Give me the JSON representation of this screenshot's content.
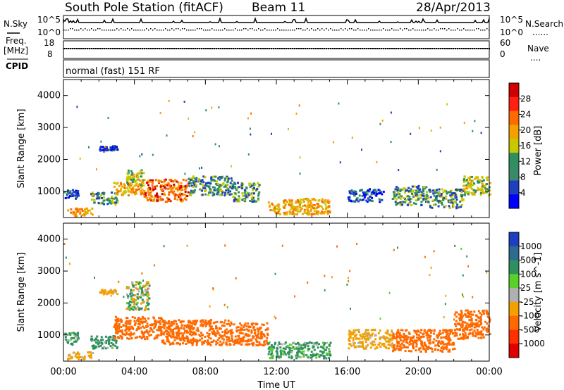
{
  "header": {
    "station": "South Pole Station (fitACF)",
    "beam": "Beam 11",
    "date": "28/Apr/2013"
  },
  "side_labels": {
    "nsky": "N.Sky",
    "freq_line1": "Freq.",
    "freq_line2": "[MHz]",
    "cpid": "CPID",
    "nsearch": "N.Search",
    "nave": "Nave",
    "dots": "......",
    "dots_short": "...."
  },
  "cpid_text": "normal (fast) 151 RF",
  "axes": {
    "nsky_ticks": [
      "10^5",
      "10^0"
    ],
    "nsearch_ticks": [
      "10^5",
      "10^0"
    ],
    "freq_ticks": [
      "18",
      "8"
    ],
    "nave_ticks": [
      "60",
      "0"
    ],
    "range_label": "Slant Range [km]",
    "range_ticks": [
      1000,
      2000,
      3000,
      4000
    ],
    "range_lim": [
      180,
      4500
    ],
    "time_label": "Time UT",
    "time_ticks": [
      "00:00",
      "04:00",
      "08:00",
      "12:00",
      "16:00",
      "20:00",
      "00:00"
    ],
    "time_lim_hours": [
      0,
      24
    ]
  },
  "colorbars": {
    "power": {
      "label": "Power [dB]",
      "ticks": [
        "28",
        "24",
        "20",
        "16",
        "12",
        "8",
        "4"
      ],
      "colors": [
        "#d00000",
        "#ff2010",
        "#ff6a00",
        "#f4a000",
        "#c8c800",
        "#2f8f5f",
        "#3a8a6a",
        "#1e3fbe",
        "#0000ff"
      ]
    },
    "velocity": {
      "label": "Velocity [m s^-1]",
      "ticks": [
        "1000",
        "500",
        "100",
        "25",
        "-25",
        "-100",
        "-500",
        "-1000"
      ],
      "colors": [
        "#1e3fbe",
        "#2f6b8f",
        "#2f8f5f",
        "#5ad02a",
        "#b0b0b0",
        "#f4a000",
        "#ff6a00",
        "#ff3000",
        "#e00000"
      ]
    }
  },
  "chart_data": [
    {
      "type": "heatmap",
      "title": "South Pole Station (fitACF) Beam 11 28/Apr/2013",
      "xlabel": "Time UT",
      "ylabel": "Slant Range [km]",
      "xlim": [
        0,
        24
      ],
      "ylim": [
        180,
        4500
      ],
      "quantity": "Power [dB]",
      "regions": [
        {
          "t": [
            0.0,
            0.8
          ],
          "r": [
            800,
            1100
          ],
          "value": 8
        },
        {
          "t": [
            0.2,
            1.6
          ],
          "r": [
            250,
            500
          ],
          "value": 20
        },
        {
          "t": [
            1.5,
            3.0
          ],
          "r": [
            600,
            1000
          ],
          "value": 12
        },
        {
          "t": [
            2.0,
            3.0
          ],
          "r": [
            2300,
            2450
          ],
          "value": 8
        },
        {
          "t": [
            2.8,
            4.5
          ],
          "r": [
            900,
            1300
          ],
          "value": 20
        },
        {
          "t": [
            3.5,
            4.5
          ],
          "r": [
            1200,
            1700
          ],
          "value": 16
        },
        {
          "t": [
            4.5,
            7.0
          ],
          "r": [
            700,
            1400
          ],
          "value": 24
        },
        {
          "t": [
            7.0,
            9.5
          ],
          "r": [
            900,
            1500
          ],
          "value": 12
        },
        {
          "t": [
            9.5,
            11.0
          ],
          "r": [
            700,
            1300
          ],
          "value": 12
        },
        {
          "t": [
            11.5,
            15.0
          ],
          "r": [
            300,
            800
          ],
          "value": 20
        },
        {
          "t": [
            16.0,
            18.0
          ],
          "r": [
            700,
            1100
          ],
          "value": 8
        },
        {
          "t": [
            18.5,
            20.5
          ],
          "r": [
            600,
            1200
          ],
          "value": 12
        },
        {
          "t": [
            20.5,
            22.5
          ],
          "r": [
            500,
            1100
          ],
          "value": 12
        },
        {
          "t": [
            22.5,
            24.0
          ],
          "r": [
            900,
            1500
          ],
          "value": 16
        }
      ]
    },
    {
      "type": "heatmap",
      "xlabel": "Time UT",
      "ylabel": "Slant Range [km]",
      "xlim": [
        0,
        24
      ],
      "ylim": [
        180,
        4500
      ],
      "quantity": "Velocity [m s^-1]",
      "regions": [
        {
          "t": [
            0.0,
            0.8
          ],
          "r": [
            700,
            1100
          ],
          "value": 100
        },
        {
          "t": [
            0.2,
            1.6
          ],
          "r": [
            250,
            500
          ],
          "value": -100
        },
        {
          "t": [
            1.5,
            3.0
          ],
          "r": [
            600,
            1000
          ],
          "value": 100
        },
        {
          "t": [
            2.0,
            3.0
          ],
          "r": [
            2300,
            2450
          ],
          "value": -100
        },
        {
          "t": [
            2.8,
            5.5
          ],
          "r": [
            900,
            1600
          ],
          "value": -500
        },
        {
          "t": [
            3.5,
            4.8
          ],
          "r": [
            1800,
            2700
          ],
          "value": 25
        },
        {
          "t": [
            5.5,
            9.5
          ],
          "r": [
            700,
            1500
          ],
          "value": -500
        },
        {
          "t": [
            9.5,
            11.5
          ],
          "r": [
            700,
            1400
          ],
          "value": -500
        },
        {
          "t": [
            11.5,
            15.0
          ],
          "r": [
            300,
            800
          ],
          "value": 100
        },
        {
          "t": [
            16.0,
            18.5
          ],
          "r": [
            600,
            1200
          ],
          "value": -100
        },
        {
          "t": [
            18.5,
            22.0
          ],
          "r": [
            500,
            1200
          ],
          "value": -500
        },
        {
          "t": [
            22.0,
            24.0
          ],
          "r": [
            900,
            1800
          ],
          "value": -500
        }
      ]
    }
  ]
}
